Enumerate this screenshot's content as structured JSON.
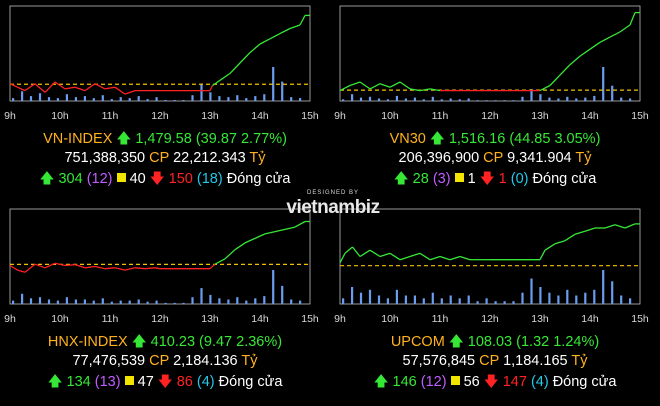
{
  "logo": {
    "sub": "DESIGNED BY",
    "brand": "vietnambiz"
  },
  "chart_data": [
    {
      "type": "line",
      "name": "VN-INDEX",
      "x_ticks": [
        "9h",
        "10h",
        "11h",
        "12h",
        "13h",
        "14h",
        "15h"
      ],
      "xlim": [
        9,
        15
      ],
      "ylim": [
        1430,
        1485
      ],
      "reference": 1439.71,
      "series": [
        {
          "name": "VN-INDEX",
          "x": [
            9.0,
            9.15,
            9.3,
            9.5,
            9.7,
            9.9,
            10.1,
            10.3,
            10.5,
            10.7,
            10.9,
            11.1,
            11.3,
            11.5,
            11.6,
            11.8,
            12.0,
            12.5,
            13.0,
            13.05,
            13.2,
            13.4,
            13.6,
            13.8,
            14.0,
            14.2,
            14.4,
            14.6,
            14.8,
            14.9,
            15.0
          ],
          "y": [
            1440,
            1438,
            1436,
            1440,
            1435,
            1441,
            1437,
            1438,
            1436,
            1440,
            1437,
            1438,
            1434,
            1436,
            1436,
            1436,
            1436,
            1436,
            1436,
            1439,
            1442,
            1446,
            1452,
            1458,
            1463,
            1466,
            1469,
            1472,
            1474,
            1479.58,
            1479.58
          ]
        }
      ],
      "volume": [
        3,
        10,
        5,
        8,
        4,
        3,
        7,
        4,
        5,
        3,
        6,
        2,
        4,
        3,
        5,
        2,
        4,
        1,
        1,
        1,
        6,
        18,
        9,
        5,
        4,
        6,
        3,
        5,
        7,
        35,
        20,
        4,
        3
      ],
      "summary": {
        "name": "VN-INDEX",
        "value": "1,479.58",
        "change": "(39.87 2.77%)",
        "volume": "751,388,350",
        "cp_label": "CP",
        "amount": "22,212.343",
        "unit": "Tỷ",
        "up": "304",
        "ceiling": "(12)",
        "flat": "40",
        "down": "150",
        "floor": "(18)",
        "status": "Đóng cửa"
      }
    },
    {
      "type": "line",
      "name": "VN30",
      "x_ticks": [
        "9h",
        "10h",
        "11h",
        "12h",
        "13h",
        "14h",
        "15h"
      ],
      "xlim": [
        9,
        15
      ],
      "ylim": [
        1465,
        1520
      ],
      "reference": 1471.31,
      "series": [
        {
          "name": "VN30",
          "x": [
            9.0,
            9.2,
            9.4,
            9.6,
            9.8,
            10.0,
            10.2,
            10.4,
            10.6,
            10.8,
            11.0,
            11.3,
            11.6,
            11.9,
            12.5,
            13.0,
            13.2,
            13.4,
            13.6,
            13.8,
            14.0,
            14.2,
            14.4,
            14.6,
            14.8,
            14.9,
            15.0
          ],
          "y": [
            1471,
            1474,
            1476,
            1472,
            1475,
            1473,
            1476,
            1472,
            1471,
            1472,
            1471,
            1471,
            1471,
            1471,
            1471,
            1471,
            1474,
            1480,
            1486,
            1491,
            1495,
            1499,
            1502,
            1505,
            1509,
            1516.16,
            1516.16
          ]
        }
      ],
      "volume": [
        2,
        8,
        4,
        5,
        3,
        2,
        6,
        3,
        4,
        2,
        5,
        2,
        3,
        2,
        3,
        1,
        1,
        1,
        1,
        1,
        5,
        14,
        8,
        4,
        3,
        5,
        3,
        4,
        6,
        40,
        18,
        4,
        3
      ],
      "summary": {
        "name": "VN30",
        "value": "1,516.16",
        "change": "(44.85 3.05%)",
        "volume": "206,396,900",
        "cp_label": "CP",
        "amount": "9,341.904",
        "unit": "Tỷ",
        "up": "28",
        "ceiling": "(3)",
        "flat": "1",
        "down": "1",
        "floor": "(0)",
        "status": "Đóng cửa"
      }
    },
    {
      "type": "line",
      "name": "HNX-INDEX",
      "x_ticks": [
        "9h",
        "10h",
        "11h",
        "12h",
        "13h",
        "14h",
        "15h"
      ],
      "xlim": [
        9,
        15
      ],
      "ylim": [
        392,
        413
      ],
      "reference": 400.76,
      "series": [
        {
          "name": "HNX-INDEX",
          "x": [
            9.0,
            9.15,
            9.3,
            9.5,
            9.7,
            9.9,
            10.1,
            10.3,
            10.5,
            10.7,
            10.9,
            11.1,
            11.3,
            11.5,
            11.7,
            11.9,
            12.0,
            12.5,
            13.0,
            13.1,
            13.3,
            13.5,
            13.7,
            13.9,
            14.1,
            14.3,
            14.5,
            14.7,
            14.9,
            15.0
          ],
          "y": [
            400.5,
            399.5,
            399,
            400.8,
            400,
            401,
            400.5,
            400.7,
            400,
            400.3,
            399.8,
            400,
            399.5,
            400,
            399.8,
            400,
            399.8,
            399.8,
            399.8,
            400.8,
            402,
            404,
            405.5,
            406.5,
            407.5,
            408,
            408.5,
            409,
            410.23,
            410.23
          ]
        }
      ],
      "volume": [
        3,
        9,
        5,
        6,
        4,
        3,
        6,
        4,
        4,
        3,
        5,
        2,
        3,
        3,
        4,
        2,
        3,
        1,
        1,
        1,
        6,
        14,
        8,
        5,
        4,
        6,
        3,
        5,
        7,
        30,
        16,
        4,
        3
      ],
      "summary": {
        "name": "HNX-INDEX",
        "value": "410.23",
        "change": "(9.47 2.36%)",
        "volume": "77,476,539",
        "cp_label": "CP",
        "amount": "2,184.136",
        "unit": "Tỷ",
        "up": "134",
        "ceiling": "(13)",
        "flat": "47",
        "down": "86",
        "floor": "(4)",
        "status": "Đóng cửa"
      }
    },
    {
      "type": "line",
      "name": "UPCOM",
      "x_ticks": [
        "9h",
        "10h",
        "11h",
        "12h",
        "13h",
        "14h",
        "15h"
      ],
      "xlim": [
        9,
        15
      ],
      "ylim": [
        105.5,
        108.5
      ],
      "reference": 106.71,
      "series": [
        {
          "name": "UPCOM",
          "x": [
            9.0,
            9.1,
            9.25,
            9.4,
            9.6,
            9.8,
            10.0,
            10.2,
            10.4,
            10.6,
            10.8,
            11.0,
            11.2,
            11.4,
            11.6,
            11.8,
            12.0,
            12.5,
            13.0,
            13.1,
            13.3,
            13.5,
            13.7,
            13.9,
            14.1,
            14.3,
            14.5,
            14.7,
            14.9,
            15.0
          ],
          "y": [
            106.8,
            107.1,
            107.3,
            107.0,
            107.2,
            107.0,
            107.1,
            106.9,
            107.0,
            107.1,
            106.9,
            107.0,
            106.9,
            107.0,
            106.9,
            106.9,
            106.9,
            106.9,
            106.9,
            107.2,
            107.4,
            107.5,
            107.7,
            107.8,
            107.9,
            107.9,
            108.0,
            107.9,
            108.03,
            108.03
          ]
        }
      ],
      "volume": [
        2,
        6,
        4,
        5,
        3,
        2,
        5,
        3,
        3,
        2,
        4,
        2,
        3,
        2,
        3,
        1,
        2,
        1,
        1,
        1,
        4,
        9,
        6,
        4,
        3,
        5,
        3,
        4,
        5,
        12,
        8,
        3,
        2
      ],
      "summary": {
        "name": "UPCOM",
        "value": "108.03",
        "change": "(1.32 1.24%)",
        "volume": "57,576,845",
        "cp_label": "CP",
        "amount": "1,184.165",
        "unit": "Tỷ",
        "up": "146",
        "ceiling": "(12)",
        "flat": "56",
        "down": "147",
        "floor": "(4)",
        "status": "Đóng cửa"
      }
    }
  ],
  "colors": {
    "up": "#36e736",
    "down": "#ff2222",
    "ref": "#f2c200",
    "volume": "#6a9cf0",
    "frame": "#bdbdbd",
    "axis": "#d8d8d8"
  }
}
